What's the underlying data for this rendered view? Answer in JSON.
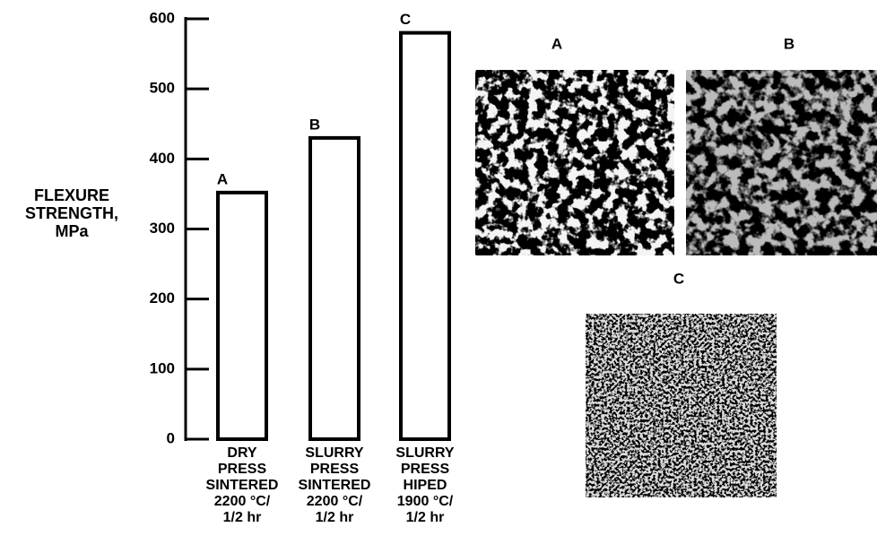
{
  "chart_data": {
    "type": "bar",
    "y_label": "FLEXURE\nSTRENGTH,\nMPa",
    "categories": [
      "DRY\nPRESS\nSINTERED\n2200 °C/\n1/2 hr",
      "SLURRY\nPRESS\nSINTERED\n2200 °C/\n1/2 hr",
      "SLURRY\nPRESS\nHIPED\n1900 °C/\n1/2 hr"
    ],
    "values": [
      352,
      430,
      580
    ],
    "bar_labels": [
      "A",
      "B",
      "C"
    ],
    "color": "#000000",
    "ylim": [
      0,
      600
    ],
    "yticks": [
      0,
      100,
      200,
      300,
      400,
      500,
      600
    ],
    "micrograph_labels": [
      "A",
      "B",
      "C"
    ]
  }
}
